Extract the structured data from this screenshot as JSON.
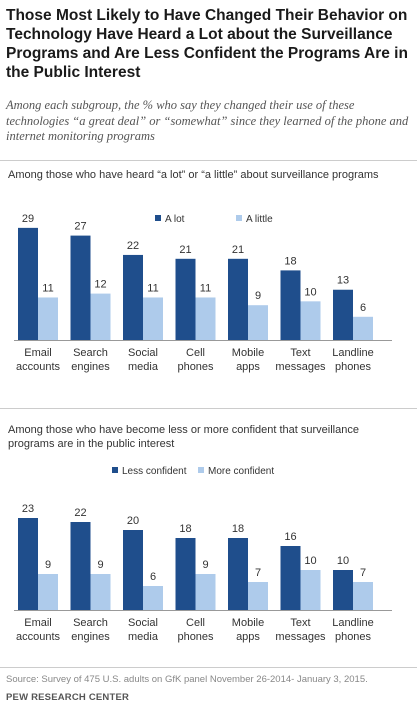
{
  "title": "Those Most Likely to Have Changed Their Behavior on Technology Have Heard a Lot about the Surveillance Programs and Are Less Confident the Programs Are in the Public Interest",
  "subtitle": "Among each subgroup, the % who say they changed their use of these technologies “a great deal” or “somewhat” since they learned of the phone and internet monitoring programs",
  "source": "Source: Survey of 475 U.S. adults on GfK panel November 26-2014- January 3, 2015.",
  "footer": "PEW RESEARCH CENTER",
  "colors": {
    "dark": "#1f4e8c",
    "light": "#aecbeb"
  },
  "chart_data": [
    {
      "type": "bar",
      "title": "Among those who have heard “a lot” or “a little” about surveillance programs",
      "categories": [
        "Email accounts",
        "Search engines",
        "Social media",
        "Cell phones",
        "Mobile apps",
        "Text messages",
        "Landline phones"
      ],
      "category_lines": [
        [
          "Email",
          "accounts"
        ],
        [
          "Search",
          "engines"
        ],
        [
          "Social",
          "media"
        ],
        [
          "Cell",
          "phones"
        ],
        [
          "Mobile",
          "apps"
        ],
        [
          "Text",
          "messages"
        ],
        [
          "Landline",
          "phones"
        ]
      ],
      "series": [
        {
          "name": "A lot",
          "values": [
            29,
            27,
            22,
            21,
            21,
            18,
            13
          ]
        },
        {
          "name": "A little",
          "values": [
            11,
            12,
            11,
            11,
            9,
            10,
            6
          ]
        }
      ],
      "ylim": [
        0,
        30
      ],
      "legend": "top-center",
      "grid": false
    },
    {
      "type": "bar",
      "title": "Among those who have become less or more confident that surveillance programs are in the public interest",
      "categories": [
        "Email accounts",
        "Search engines",
        "Social media",
        "Cell phones",
        "Mobile apps",
        "Text messages",
        "Landline phones"
      ],
      "category_lines": [
        [
          "Email",
          "accounts"
        ],
        [
          "Search",
          "engines"
        ],
        [
          "Social",
          "media"
        ],
        [
          "Cell",
          "phones"
        ],
        [
          "Mobile",
          "apps"
        ],
        [
          "Text",
          "messages"
        ],
        [
          "Landline",
          "phones"
        ]
      ],
      "series": [
        {
          "name": "Less confident",
          "values": [
            23,
            22,
            20,
            18,
            18,
            16,
            10
          ]
        },
        {
          "name": "More confident",
          "values": [
            9,
            9,
            6,
            9,
            7,
            10,
            7
          ]
        }
      ],
      "ylim": [
        0,
        30
      ],
      "legend": "top-center",
      "grid": false
    }
  ]
}
